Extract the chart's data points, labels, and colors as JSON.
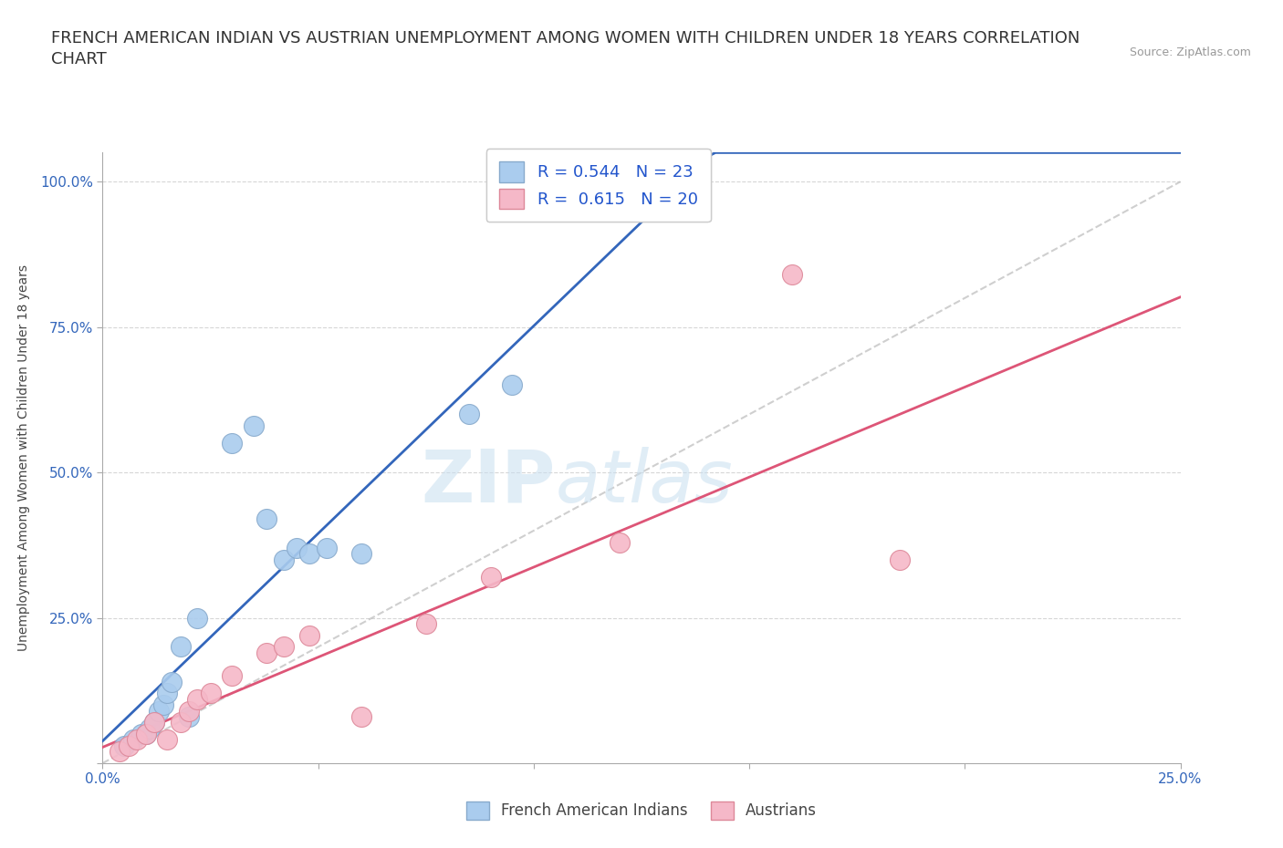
{
  "title": "FRENCH AMERICAN INDIAN VS AUSTRIAN UNEMPLOYMENT AMONG WOMEN WITH CHILDREN UNDER 18 YEARS CORRELATION\nCHART",
  "source": "Source: ZipAtlas.com",
  "ylabel": "Unemployment Among Women with Children Under 18 years",
  "xlim": [
    0.0,
    0.25
  ],
  "ylim": [
    0.0,
    1.05
  ],
  "xticks": [
    0.0,
    0.05,
    0.1,
    0.15,
    0.2,
    0.25
  ],
  "xticklabels": [
    "0.0%",
    "",
    "",
    "",
    "",
    "25.0%"
  ],
  "yticks": [
    0.0,
    0.25,
    0.5,
    0.75,
    1.0
  ],
  "yticklabels": [
    "",
    "25.0%",
    "50.0%",
    "75.0%",
    "100.0%"
  ],
  "french_x": [
    0.005,
    0.007,
    0.009,
    0.01,
    0.011,
    0.012,
    0.013,
    0.014,
    0.015,
    0.016,
    0.018,
    0.02,
    0.022,
    0.03,
    0.035,
    0.038,
    0.042,
    0.045,
    0.048,
    0.052,
    0.06,
    0.085,
    0.095
  ],
  "french_y": [
    0.03,
    0.04,
    0.05,
    0.05,
    0.06,
    0.07,
    0.09,
    0.1,
    0.12,
    0.14,
    0.2,
    0.08,
    0.25,
    0.55,
    0.58,
    0.42,
    0.35,
    0.37,
    0.36,
    0.37,
    0.36,
    0.6,
    0.65
  ],
  "austrian_x": [
    0.004,
    0.006,
    0.008,
    0.01,
    0.012,
    0.015,
    0.018,
    0.02,
    0.022,
    0.025,
    0.03,
    0.038,
    0.042,
    0.048,
    0.06,
    0.075,
    0.09,
    0.12,
    0.16,
    0.185
  ],
  "austrian_y": [
    0.02,
    0.03,
    0.04,
    0.05,
    0.07,
    0.04,
    0.07,
    0.09,
    0.11,
    0.12,
    0.15,
    0.19,
    0.2,
    0.22,
    0.08,
    0.24,
    0.32,
    0.38,
    0.84,
    0.35
  ],
  "french_color": "#aaccee",
  "french_edge_color": "#88aacc",
  "austrian_color": "#f5b8c8",
  "austrian_edge_color": "#dd8899",
  "french_R": 0.544,
  "french_N": 23,
  "austrian_R": 0.615,
  "austrian_N": 20,
  "trendline_french_color": "#3366bb",
  "trendline_austrian_color": "#dd5577",
  "diagonal_color": "#bbbbbb",
  "grid_color": "#cccccc",
  "background_color": "#ffffff",
  "watermark_zip": "ZIP",
  "watermark_atlas": "atlas",
  "legend_R_color": "#2255cc",
  "title_fontsize": 13,
  "axis_label_fontsize": 10,
  "tick_fontsize": 11,
  "legend_fontsize": 13
}
